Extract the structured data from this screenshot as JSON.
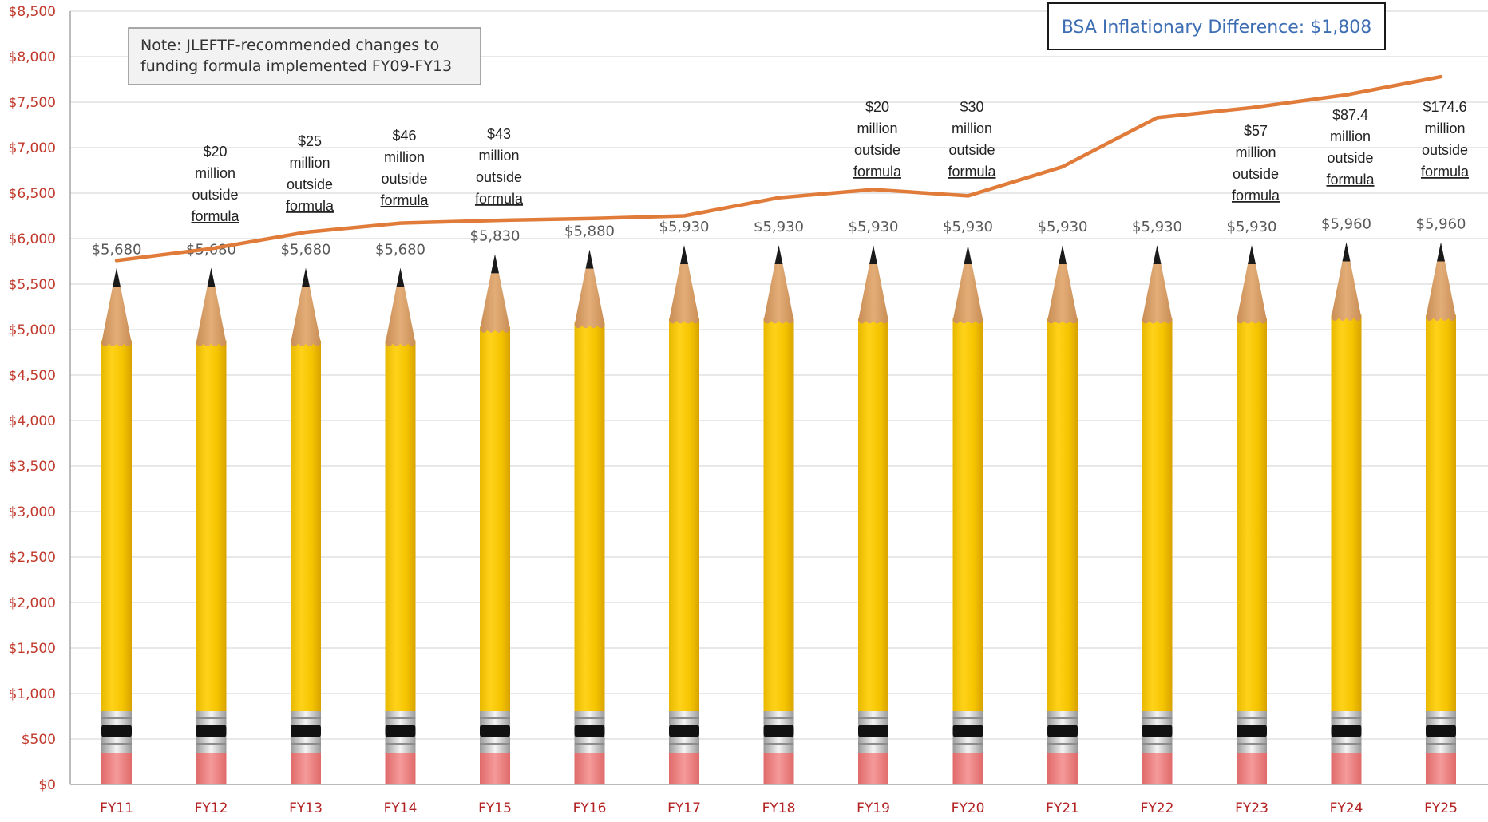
{
  "chart_data": {
    "type": "bar",
    "categories": [
      "FY11",
      "FY12",
      "FY13",
      "FY14",
      "FY15",
      "FY16",
      "FY17",
      "FY18",
      "FY19",
      "FY20",
      "FY21",
      "FY22",
      "FY23",
      "FY24",
      "FY25"
    ],
    "series": [
      {
        "values": [
          5680,
          5680,
          5680,
          5680,
          5830,
          5880,
          5930,
          5930,
          5930,
          5930,
          5930,
          5930,
          5930,
          5960,
          5960
        ],
        "data_labels": [
          "$5,680",
          "$5,680",
          "$5,680",
          "$5,680",
          "$5,830",
          "$5,880",
          "$5,930",
          "$5,930",
          "$5,930",
          "$5,930",
          "$5,930",
          "$5,930",
          "$5,930",
          "$5,960",
          "$5,960"
        ],
        "style": "pencil",
        "color": "#f5c400"
      },
      {
        "type": "line",
        "values": [
          5760,
          5890,
          6070,
          6170,
          6200,
          6220,
          6250,
          6450,
          6540,
          6470,
          6790,
          7330,
          7440,
          7580,
          7780
        ],
        "color": "#e07b39"
      }
    ],
    "yticks": [
      "$0",
      "$500",
      "$1,000",
      "$1,500",
      "$2,000",
      "$2,500",
      "$3,000",
      "$3,500",
      "$4,000",
      "$4,500",
      "$5,000",
      "$5,500",
      "$6,000",
      "$6,500",
      "$7,000",
      "$7,500",
      "$8,000",
      "$8,500"
    ],
    "ylim": [
      0,
      8500
    ],
    "grid": true,
    "annotations": [
      {
        "category": "FY12",
        "lines": [
          "$20",
          "million",
          "outside",
          "formula"
        ]
      },
      {
        "category": "FY13",
        "lines": [
          "$25",
          "million",
          "outside",
          "formula"
        ]
      },
      {
        "category": "FY14",
        "lines": [
          "$46",
          "million",
          "outside",
          "formula"
        ]
      },
      {
        "category": "FY15",
        "lines": [
          "$43",
          "million",
          "outside",
          "formula"
        ]
      },
      {
        "category": "FY19",
        "lines": [
          "$20",
          "million",
          "outside",
          "formula"
        ]
      },
      {
        "category": "FY20",
        "lines": [
          "$30",
          "million",
          "outside",
          "formula"
        ]
      },
      {
        "category": "FY23",
        "lines": [
          "$57",
          "million",
          "outside",
          "formula"
        ]
      },
      {
        "category": "FY24",
        "lines": [
          "$87.4",
          "million",
          "outside",
          "formula"
        ]
      },
      {
        "category": "FY25",
        "lines": [
          "$174.6",
          "million",
          "outside",
          "formula"
        ]
      }
    ],
    "note": [
      "Note: JLEFTF-recommended changes to",
      "funding formula implemented FY09-FY13"
    ],
    "callout": "BSA Inflationary Difference: $1,808",
    "colors": {
      "grid": "#d9d9d9",
      "axis": "#a6a6a6",
      "pencil_body": "#f5c400",
      "pencil_shade": "#d9a800",
      "wood": "#d9a066",
      "lead": "#1a1a1a",
      "ferrule": "#d0d0d0",
      "band": "#111111",
      "eraser": "#f08080",
      "line": "#e07b39",
      "note_bg": "#f2f2f2",
      "callout_text": "#3d6eb4"
    }
  }
}
